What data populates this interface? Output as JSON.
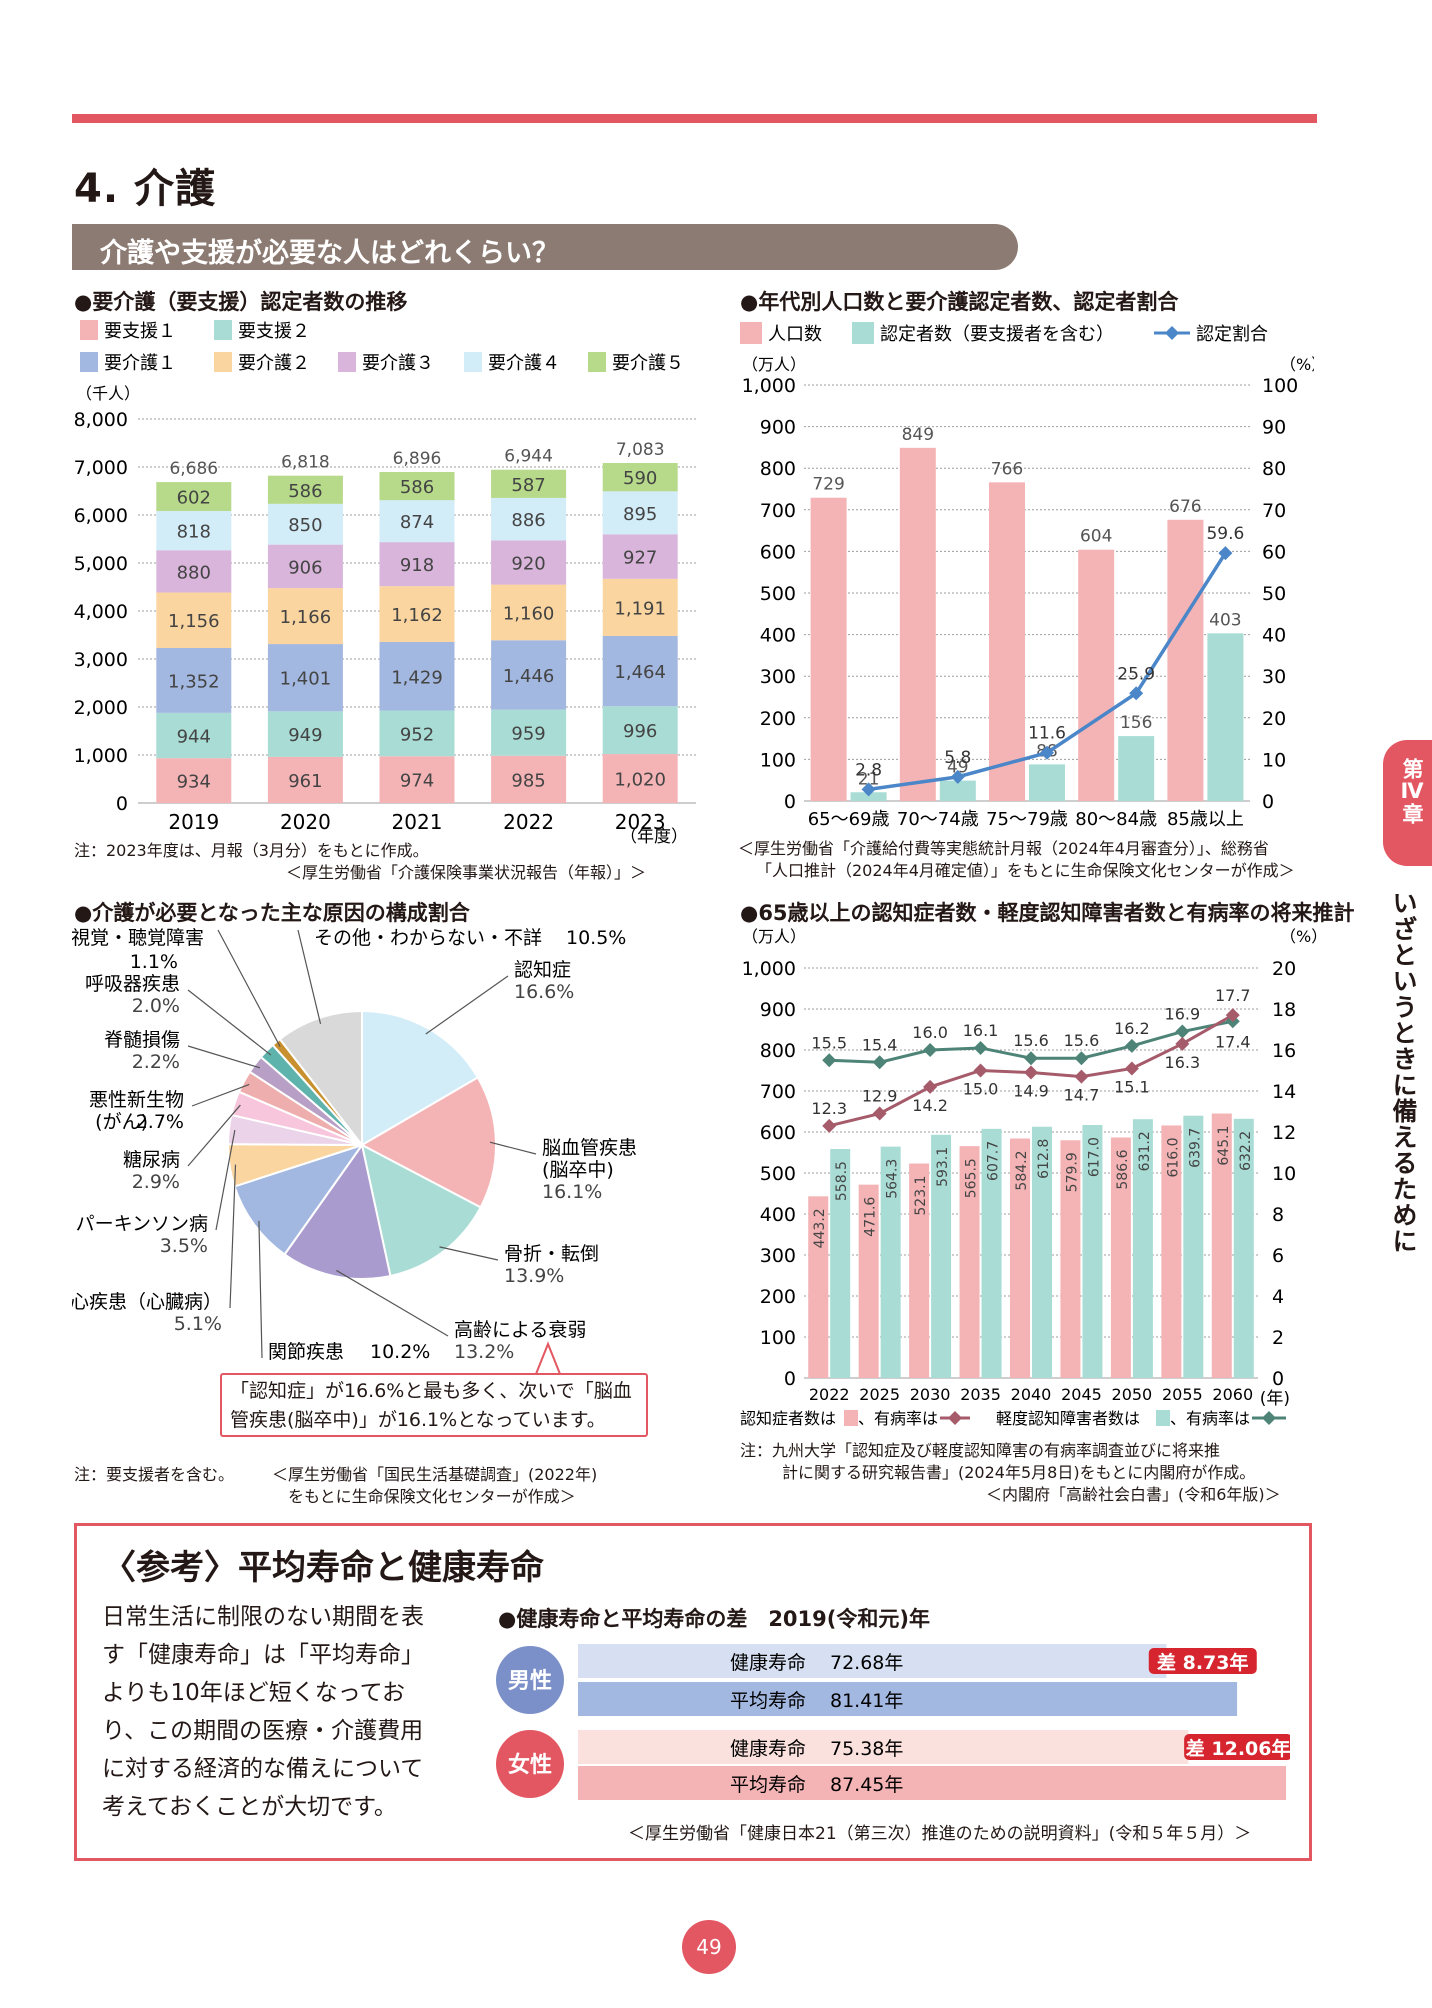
{
  "page": {
    "title": "4. 介護",
    "section_banner": "介護や支援が必要な人はどれくらい？",
    "side_tab": "第Ⅳ章",
    "side_caption": "いざというときに備えるために",
    "page_number": "49"
  },
  "colors": {
    "accent": "#e35762",
    "banner": "#8c7b73",
    "shien1": "#f4b4b6",
    "shien2": "#a8dcd5",
    "kaigo1": "#a3b8e0",
    "kaigo2": "#fad5a0",
    "kaigo3": "#d9b5db",
    "kaigo4": "#d2ecf8",
    "kaigo5": "#b6d98a",
    "population": "#f4b4b6",
    "certified": "#a8dcd5",
    "ratio_line": "#4a86c8",
    "dementia_line": "#a65b6b",
    "mci_line": "#4e8477"
  },
  "chart1": {
    "title": "●要介護（要支援）認定者数の推移",
    "note": "注：2023年度は、月報（3月分）をもとに作成。",
    "source": "＜厚生労働省「介護保険事業状況報告（年報）」＞"
  },
  "chart2": {
    "title": "●年代別人口数と要介護認定者数、認定者割合",
    "source_line1": "＜厚生労働省「介護給付費等実態統計月報（2024年4月審査分）」、総務省",
    "source_line2": "「人口推計（2024年4月確定値）」をもとに生命保険文化センターが作成＞"
  },
  "chart3": {
    "title": "●介護が必要となった主な原因の構成割合",
    "callout_line1": "「認知症」が16.6%と最も多く、次いで「脳血",
    "callout_line2": "管疾患(脳卒中)」が16.1%となっています。",
    "note": "注：要支援者を含む。",
    "source_line1": "＜厚生労働省「国民生活基礎調査」(2022年)",
    "source_line2": "をもとに生命保険文化センターが作成＞"
  },
  "chart4": {
    "title": "●65歳以上の認知症者数・軽度認知障害者数と有病率の将来推計",
    "legend": {
      "dementia_count": "認知症者数は",
      "dementia_rate": "、有病率は",
      "mci_count": "軽度認知障害者数は",
      "mci_rate": "、有病率は"
    },
    "note_line1": "注：九州大学「認知症及び軽度認知障害の有病率調査並びに将来推",
    "note_line2": "計に関する研究報告書」(2024年5月8日)をもとに内閣府が作成。",
    "source": "＜内閣府「高齢社会白書」(令和6年版)＞"
  },
  "reference": {
    "title": "〈参考〉平均寿命と健康寿命",
    "body": [
      "日常生活に制限のない期間を表",
      "す「健康寿命」は「平均寿命」",
      "よりも10年ほど短くなってお",
      "り、この期間の医療・介護費用",
      "に対する経済的な備えについて",
      "考えておくことが大切です。"
    ],
    "chart_title": "●健康寿命と平均寿命の差　2019(令和元)年",
    "source": "＜厚生労働省「健康日本21（第三次）推進のための説明資料」(令和５年５月）＞"
  },
  "chart_data": [
    {
      "id": "care-certification-trend",
      "type": "bar",
      "stacked": true,
      "title": "●要介護（要支援）認定者数の推移",
      "categories": [
        "2019",
        "2020",
        "2021",
        "2022",
        "2023"
      ],
      "xlabel": "（年度）",
      "ylabel": "（千人）",
      "ylim": [
        0,
        8000
      ],
      "yticks": [
        "0",
        "1,000",
        "2,000",
        "3,000",
        "4,000",
        "5,000",
        "6,000",
        "7,000",
        "8,000"
      ],
      "legend_position": "top",
      "grid": true,
      "series": [
        {
          "name": "要支援１",
          "values": [
            934,
            961,
            974,
            985,
            1020
          ],
          "labels": [
            "934",
            "961",
            "974",
            "985",
            "1,020"
          ]
        },
        {
          "name": "要支援２",
          "values": [
            944,
            949,
            952,
            959,
            996
          ],
          "labels": [
            "944",
            "949",
            "952",
            "959",
            "996"
          ]
        },
        {
          "name": "要介護１",
          "values": [
            1352,
            1401,
            1429,
            1446,
            1464
          ],
          "labels": [
            "1,352",
            "1,401",
            "1,429",
            "1,446",
            "1,464"
          ]
        },
        {
          "name": "要介護２",
          "values": [
            1156,
            1166,
            1162,
            1160,
            1191
          ],
          "labels": [
            "1,156",
            "1,166",
            "1,162",
            "1,160",
            "1,191"
          ]
        },
        {
          "name": "要介護３",
          "values": [
            880,
            906,
            918,
            920,
            927
          ],
          "labels": [
            "880",
            "906",
            "918",
            "920",
            "927"
          ]
        },
        {
          "name": "要介護４",
          "values": [
            818,
            850,
            874,
            886,
            895
          ],
          "labels": [
            "818",
            "850",
            "874",
            "886",
            "895"
          ]
        },
        {
          "name": "要介護５",
          "values": [
            602,
            586,
            586,
            587,
            590
          ],
          "labels": [
            "602",
            "586",
            "586",
            "587",
            "590"
          ]
        }
      ],
      "totals": [
        "6,686",
        "6,818",
        "6,896",
        "6,944",
        "7,083"
      ]
    },
    {
      "id": "population-by-age",
      "type": "bar",
      "title": "●年代別人口数と要介護認定者数、認定者割合",
      "categories": [
        "65～69歳",
        "70～74歳",
        "75～79歳",
        "80～84歳",
        "85歳以上"
      ],
      "ylabel_left": "（万人）",
      "ylabel_right": "（%）",
      "ylim_left": [
        0,
        1000
      ],
      "ylim_right": [
        0,
        100
      ],
      "yticks_left": [
        "0",
        "100",
        "200",
        "300",
        "400",
        "500",
        "600",
        "700",
        "800",
        "900",
        "1,000"
      ],
      "yticks_right": [
        "0",
        "10",
        "20",
        "30",
        "40",
        "50",
        "60",
        "70",
        "80",
        "90",
        "100"
      ],
      "grid": true,
      "series": [
        {
          "name": "人口数",
          "type": "bar",
          "values": [
            729,
            849,
            766,
            604,
            676
          ]
        },
        {
          "name": "認定者数（要支援者を含む）",
          "type": "bar",
          "values": [
            21,
            49,
            88,
            156,
            403
          ]
        },
        {
          "name": "認定割合",
          "type": "line",
          "axis": "right",
          "values": [
            2.8,
            5.8,
            11.6,
            25.9,
            59.6
          ]
        }
      ]
    },
    {
      "id": "care-causes",
      "type": "pie",
      "title": "●介護が必要となった主な原因の構成割合",
      "slices": [
        {
          "name": "認知症",
          "value": 16.6,
          "label": "16.6%",
          "color": "#d2ecf8"
        },
        {
          "name": "脳血管疾患",
          "name2": "(脳卒中)",
          "value": 16.1,
          "label": "16.1%",
          "color": "#f4b4b6"
        },
        {
          "name": "骨折・転倒",
          "value": 13.9,
          "label": "13.9%",
          "color": "#a8dcd5"
        },
        {
          "name": "高齢による衰弱",
          "value": 13.2,
          "label": "13.2%",
          "color": "#a99bcd"
        },
        {
          "name": "関節疾患",
          "value": 10.2,
          "label": "10.2%",
          "color": "#a3b8e0"
        },
        {
          "name": "心疾患（心臓病）",
          "value": 5.1,
          "label": "5.1%",
          "color": "#fad5a0"
        },
        {
          "name": "パーキンソン病",
          "value": 3.5,
          "label": "3.5%",
          "color": "#ebd3ea"
        },
        {
          "name": "糖尿病",
          "value": 2.9,
          "label": "2.9%",
          "color": "#f8c6dc"
        },
        {
          "name": "悪性新生物",
          "name2": "(がん)",
          "value": 2.7,
          "label": "2.7%",
          "color": "#eeaeae"
        },
        {
          "name": "脊髄損傷",
          "value": 2.2,
          "label": "2.2%",
          "color": "#b89fc6"
        },
        {
          "name": "呼吸器疾患",
          "value": 2.0,
          "label": "2.0%",
          "color": "#5fb3ad"
        },
        {
          "name": "視覚・聴覚障害",
          "value": 1.1,
          "label": "1.1%",
          "color": "#c8902f"
        },
        {
          "name": "その他・わからない・不詳",
          "value": 10.5,
          "label": "10.5%",
          "color": "#d9d9d9"
        }
      ]
    },
    {
      "id": "dementia-projection",
      "type": "bar",
      "title": "●65歳以上の認知症者数・軽度認知障害者数と有病率の将来推計",
      "categories": [
        "2022",
        "2025",
        "2030",
        "2035",
        "2040",
        "2045",
        "2050",
        "2055",
        "2060"
      ],
      "xlabel": "(年)",
      "ylabel_left": "（万人）",
      "ylabel_right": "（%）",
      "ylim_left": [
        0,
        1000
      ],
      "ylim_right": [
        0,
        20
      ],
      "yticks_left": [
        "0",
        "100",
        "200",
        "300",
        "400",
        "500",
        "600",
        "700",
        "800",
        "900",
        "1,000"
      ],
      "yticks_right": [
        "0",
        "2",
        "4",
        "6",
        "8",
        "10",
        "12",
        "14",
        "16",
        "18",
        "20"
      ],
      "grid": true,
      "series": [
        {
          "name": "認知症者数",
          "type": "bar",
          "values": [
            443.2,
            471.6,
            523.1,
            565.5,
            584.2,
            579.9,
            586.6,
            616.0,
            645.1
          ]
        },
        {
          "name": "軽度認知障害者数",
          "type": "bar",
          "values": [
            558.5,
            564.3,
            593.1,
            607.7,
            612.8,
            617.0,
            631.2,
            639.7,
            632.2
          ]
        },
        {
          "name": "認知症有病率",
          "type": "line",
          "axis": "right",
          "values": [
            12.3,
            12.9,
            14.2,
            15.0,
            14.9,
            14.7,
            15.1,
            16.3,
            17.7
          ]
        },
        {
          "name": "軽度認知障害有病率",
          "type": "line",
          "axis": "right",
          "values": [
            15.5,
            15.4,
            16.0,
            16.1,
            15.6,
            15.6,
            16.2,
            16.9,
            17.4
          ]
        }
      ]
    },
    {
      "id": "life-expectancy",
      "type": "bar",
      "orientation": "horizontal",
      "title": "●健康寿命と平均寿命の差　2019(令和元)年",
      "groups": [
        {
          "name": "男性",
          "healthy_label": "健康寿命",
          "healthy": 72.68,
          "healthy_text": "72.68年",
          "average_label": "平均寿命",
          "average": 81.41,
          "average_text": "81.41年",
          "gap_text": "差 8.73年"
        },
        {
          "name": "女性",
          "healthy_label": "健康寿命",
          "healthy": 75.38,
          "healthy_text": "75.38年",
          "average_label": "平均寿命",
          "average": 87.45,
          "average_text": "87.45年",
          "gap_text": "差 12.06年"
        }
      ]
    }
  ]
}
